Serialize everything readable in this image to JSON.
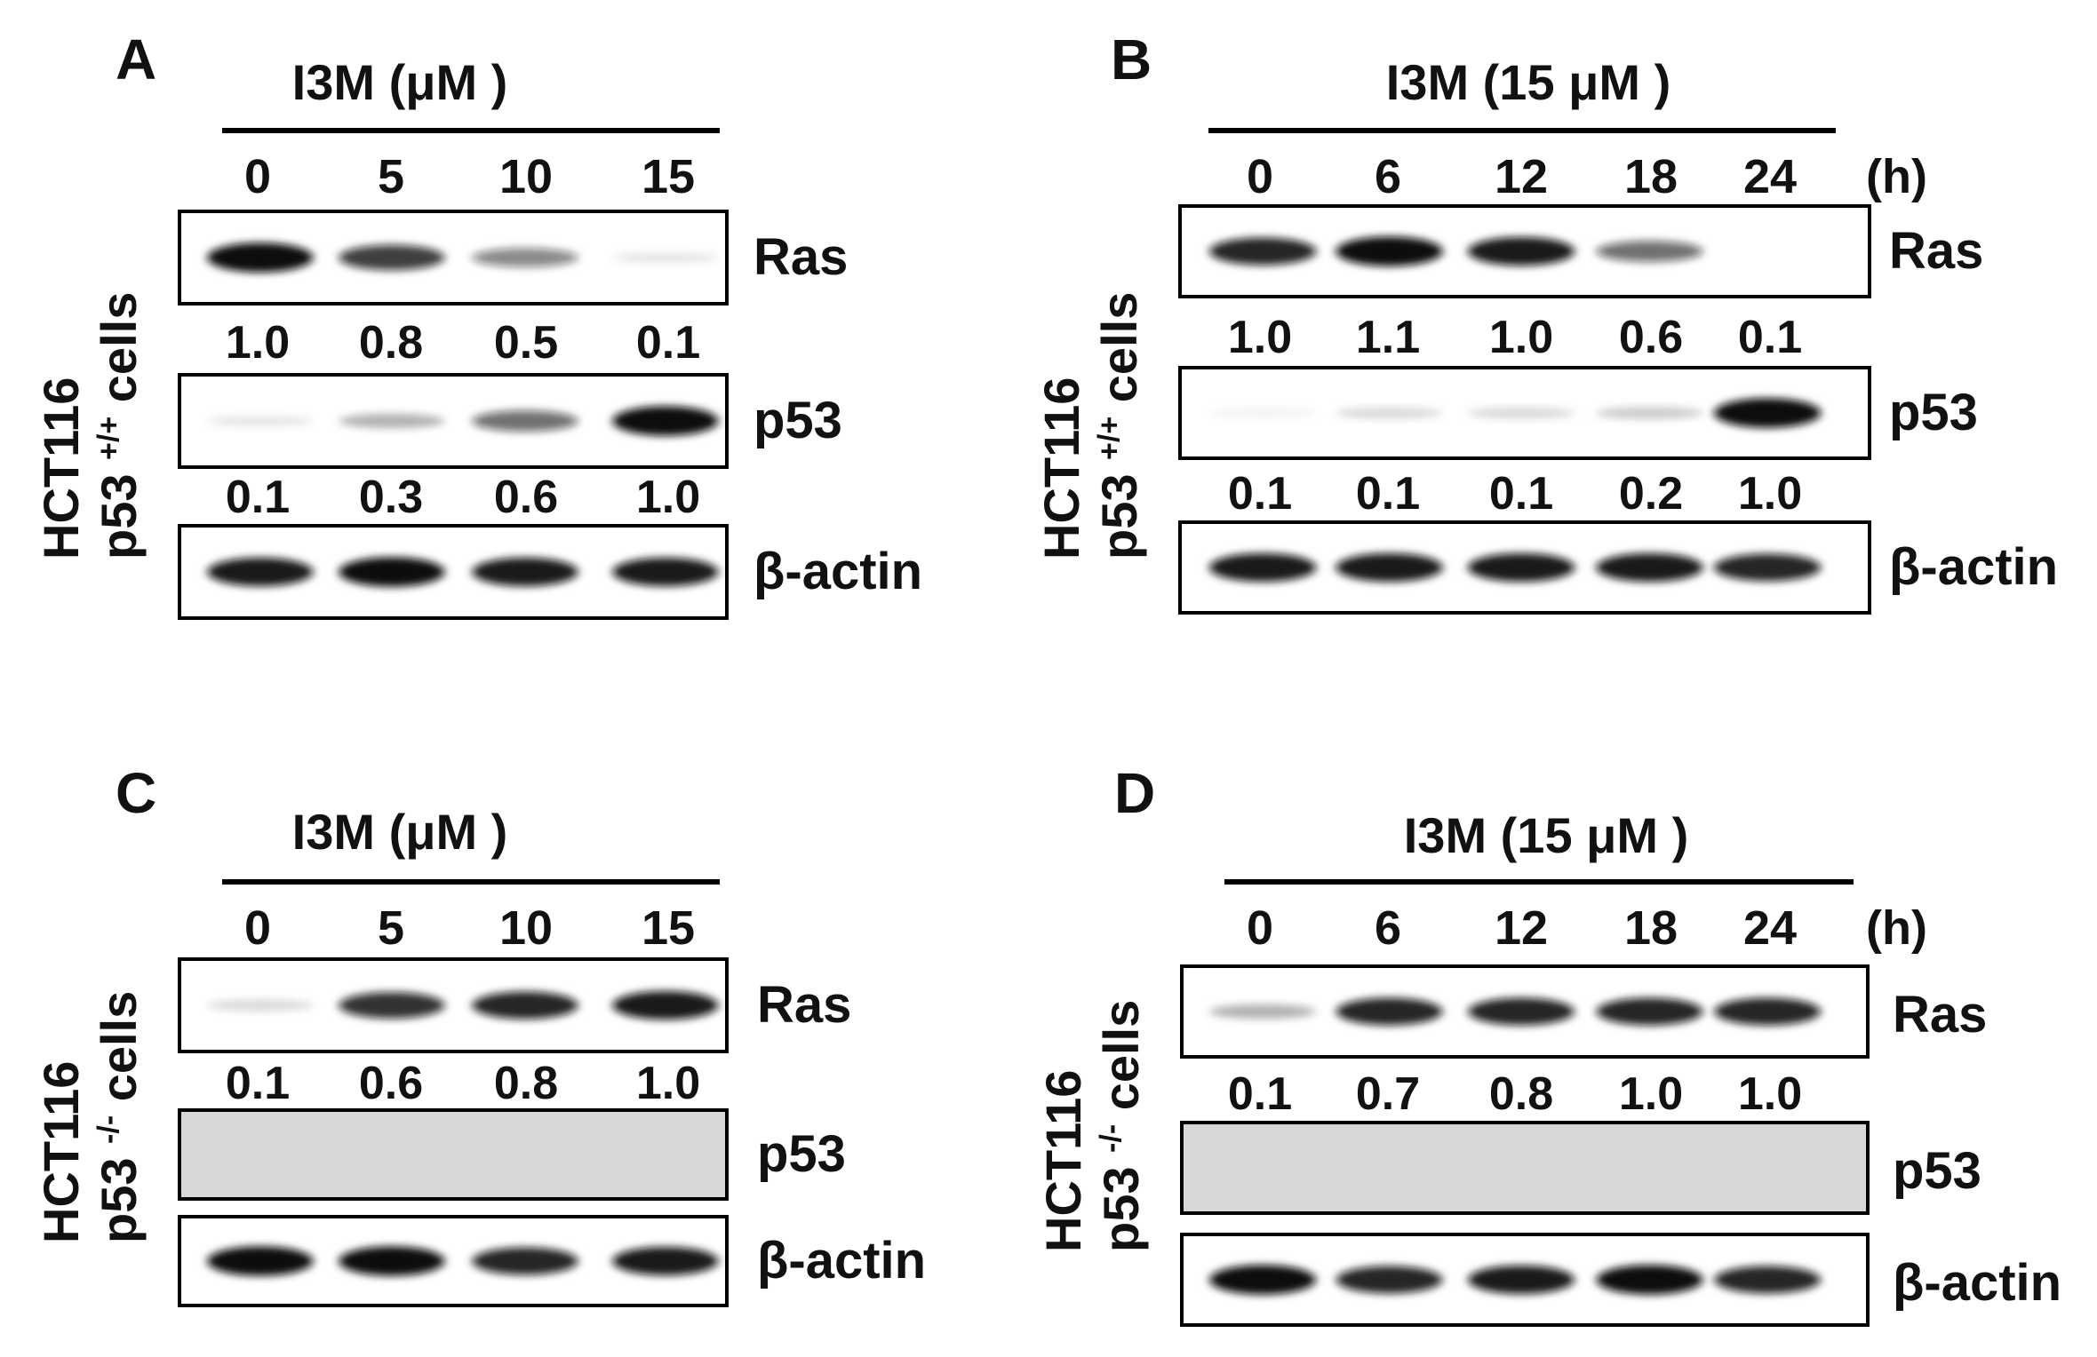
{
  "panels": [
    {
      "letter": "A",
      "treatment": "I3M (μM )",
      "lanes": [
        "0",
        "5",
        "10",
        "15"
      ],
      "unit": "",
      "side_label": {
        "line1": "HCT116",
        "line2_prefix": "p53 ",
        "line2_sup": "+/+",
        "line2_suffix": " cells"
      },
      "blots": [
        {
          "protein": "Ras",
          "quant": [
            "1.0",
            "0.8",
            "0.5",
            "0.1"
          ],
          "intensity": [
            1.0,
            0.8,
            0.5,
            0.1
          ]
        },
        {
          "protein": "p53",
          "quant": [
            "0.1",
            "0.3",
            "0.6",
            "1.0"
          ],
          "intensity": [
            0.1,
            0.3,
            0.6,
            1.0
          ]
        },
        {
          "protein": "β-actin",
          "quant": [],
          "intensity": [
            0.95,
            1.0,
            0.95,
            0.95
          ]
        }
      ]
    },
    {
      "letter": "B",
      "treatment": "I3M (15 μM )",
      "lanes": [
        "0",
        "6",
        "12",
        "18",
        "24"
      ],
      "unit": "(h)",
      "side_label": {
        "line1": "HCT116",
        "line2_prefix": "p53 ",
        "line2_sup": "+/+",
        "line2_suffix": " cells"
      },
      "blots": [
        {
          "protein": "Ras",
          "quant": [
            "1.0",
            "1.1",
            "1.0",
            "0.6",
            "0.1"
          ],
          "intensity": [
            0.9,
            1.0,
            0.95,
            0.6,
            0.0
          ]
        },
        {
          "protein": "p53",
          "quant": [
            "0.1",
            "0.1",
            "0.1",
            "0.2",
            "1.0"
          ],
          "intensity": [
            0.05,
            0.15,
            0.15,
            0.2,
            1.0
          ]
        },
        {
          "protein": "β-actin",
          "quant": [],
          "intensity": [
            0.95,
            0.95,
            0.95,
            0.95,
            0.9
          ]
        }
      ]
    },
    {
      "letter": "C",
      "treatment": "I3M (μM )",
      "lanes": [
        "0",
        "5",
        "10",
        "15"
      ],
      "unit": "",
      "side_label": {
        "line1": "HCT116",
        "line2_prefix": "p53 ",
        "line2_sup": "-/-",
        "line2_suffix": " cells"
      },
      "blots": [
        {
          "protein": "Ras",
          "quant": [
            "0.1",
            "0.6",
            "0.8",
            "1.0"
          ],
          "intensity": [
            0.15,
            0.85,
            0.9,
            0.95
          ]
        },
        {
          "protein": "p53",
          "quant": [],
          "intensity": [
            0,
            0,
            0,
            0
          ]
        },
        {
          "protein": "β-actin",
          "quant": [],
          "intensity": [
            1.0,
            1.0,
            0.9,
            0.95
          ]
        }
      ]
    },
    {
      "letter": "D",
      "treatment": "I3M (15 μM )",
      "lanes": [
        "0",
        "6",
        "12",
        "18",
        "24"
      ],
      "unit": "(h)",
      "side_label": {
        "line1": "HCT116",
        "line2_prefix": "p53 ",
        "line2_sup": "-/-",
        "line2_suffix": " cells"
      },
      "blots": [
        {
          "protein": "Ras",
          "quant": [
            "0.1",
            "0.7",
            "0.8",
            "1.0",
            "1.0"
          ],
          "intensity": [
            0.3,
            0.9,
            0.9,
            0.9,
            0.9
          ]
        },
        {
          "protein": "p53",
          "quant": [],
          "intensity": [
            0,
            0,
            0,
            0,
            0
          ]
        },
        {
          "protein": "β-actin",
          "quant": [],
          "intensity": [
            1.0,
            0.9,
            0.95,
            1.0,
            0.9
          ]
        }
      ]
    }
  ]
}
